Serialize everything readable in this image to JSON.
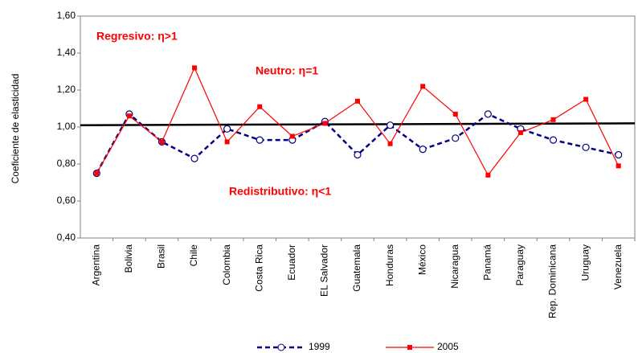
{
  "chart_data": {
    "type": "line",
    "y_label": "Coeficiente de elasticidad",
    "categories": [
      "Argentina",
      "Bolivia",
      "Brasil",
      "Chile",
      "Colombia",
      "Costa Rica",
      "Ecuador",
      "EL Salvador",
      "Guatemala",
      "Honduras",
      "México",
      "Nicaragua",
      "Panamá",
      "Paraguay",
      "Rep. Dominicana",
      "Uruguay",
      "Venezuela"
    ],
    "series": [
      {
        "name": "1999",
        "color": "#000080",
        "values": [
          0.75,
          1.07,
          0.92,
          0.83,
          0.99,
          0.93,
          0.93,
          1.03,
          0.85,
          1.01,
          0.88,
          0.94,
          1.07,
          0.99,
          0.93,
          0.89,
          0.85
        ]
      },
      {
        "name": "2005",
        "color": "#ff0000",
        "values": [
          0.75,
          1.06,
          0.92,
          1.32,
          0.92,
          1.11,
          0.95,
          1.02,
          1.14,
          0.91,
          1.22,
          1.07,
          0.74,
          0.97,
          1.04,
          1.15,
          0.79
        ]
      }
    ],
    "reference_line": [
      1.01,
      1.02
    ],
    "annotations": [
      "Regresivo: η>1",
      "Neutro: η=1",
      "Redistributivo: η<1"
    ],
    "ylim": [
      0.4,
      1.6
    ],
    "yticks": [
      {
        "value": 0.4,
        "label": "0,40"
      },
      {
        "value": 0.6,
        "label": "0,60"
      },
      {
        "value": 0.8,
        "label": "0,80"
      },
      {
        "value": 1.0,
        "label": "1,00"
      },
      {
        "value": 1.2,
        "label": "1,20"
      },
      {
        "value": 1.4,
        "label": "1,40"
      },
      {
        "value": 1.6,
        "label": "1,60"
      }
    ],
    "grid": false
  }
}
